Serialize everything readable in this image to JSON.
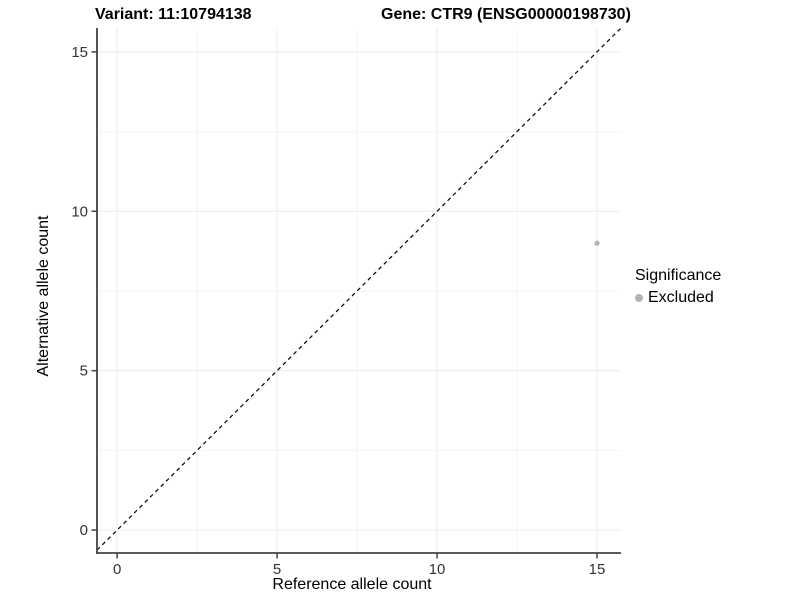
{
  "titles": {
    "variant": "Variant: 11:10794138",
    "gene": "Gene: CTR9 (ENSG00000198730)"
  },
  "axes": {
    "x_label": "Reference allele count",
    "y_label": "Alternative allele count"
  },
  "legend": {
    "title": "Significance",
    "entries": [
      {
        "label": "Excluded",
        "color": "#b3b3b3"
      }
    ]
  },
  "chart_data": {
    "type": "scatter",
    "title": "Variant: 11:10794138   Gene: CTR9 (ENSG00000198730)",
    "xlabel": "Reference allele count",
    "ylabel": "Alternative allele count",
    "xlim": [
      -0.63,
      15.75
    ],
    "ylim": [
      -0.72,
      15.75
    ],
    "x_ticks": [
      0,
      5,
      10,
      15
    ],
    "y_ticks": [
      0,
      5,
      10,
      15
    ],
    "x_minor_ticks": [
      2.5,
      7.5,
      12.5
    ],
    "y_minor_ticks": [
      2.5,
      7.5,
      12.5
    ],
    "grid": true,
    "legend_position": "right",
    "series": [
      {
        "name": "Excluded",
        "color": "#b3b3b3",
        "points": [
          {
            "x": 15,
            "y": 9
          }
        ]
      }
    ],
    "reference_line": {
      "type": "identity y=x",
      "style": "dashed",
      "color": "#000000"
    },
    "colors": {
      "grid_major": "#ececec",
      "grid_minor": "#f4f4f4",
      "axis": "#424242",
      "tick_label": "#333333",
      "point": "#b3b3b3"
    }
  }
}
